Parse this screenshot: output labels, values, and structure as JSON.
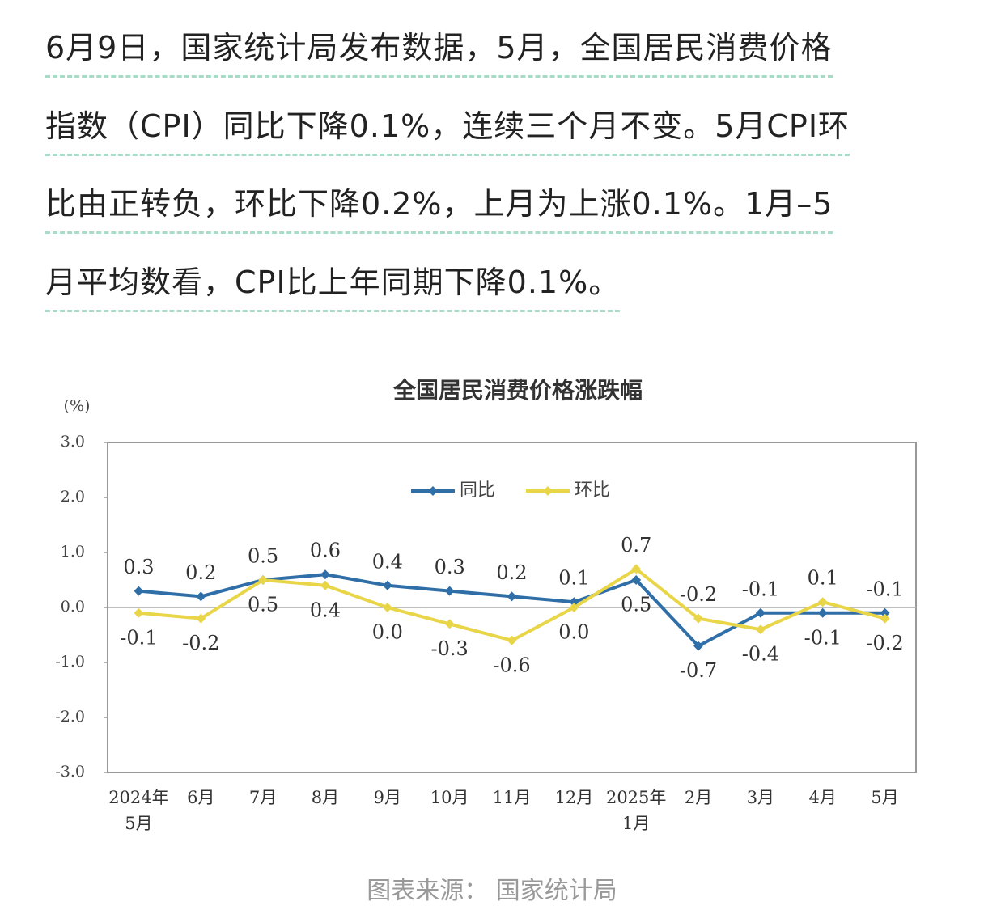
{
  "paragraph": [
    "6月9日，国家统计局发布数据，5月，全国居民消费价格",
    "指数（CPI）同比下降0.1%，连续三个月不变。5月CPI环",
    "比由正转负，环比下降0.2%，上月为上涨0.1%。1月–5",
    "月平均数看，CPI比上年同期下降0.1%。"
  ],
  "chart_data": {
    "type": "line",
    "title": "全国居民消费价格涨跌幅",
    "y_unit": "(%)",
    "categories": [
      "2024年\n5月",
      "6月",
      "7月",
      "8月",
      "9月",
      "10月",
      "11月",
      "12月",
      "2025年\n1月",
      "2月",
      "3月",
      "4月",
      "5月"
    ],
    "series": [
      {
        "name": "同比",
        "color": "#2f6ea6",
        "values": [
          0.3,
          0.2,
          0.5,
          0.6,
          0.4,
          0.3,
          0.2,
          0.1,
          0.5,
          -0.7,
          -0.1,
          -0.1,
          -0.1
        ],
        "value_labels": [
          "0.3",
          "0.2",
          "0.5",
          "0.6",
          "0.4",
          "0.3",
          "0.2",
          "0.1",
          "0.5",
          "-0.7",
          "-0.1",
          "-0.1",
          "-0.1"
        ]
      },
      {
        "name": "环比",
        "color": "#e9d548",
        "values": [
          -0.1,
          -0.2,
          0.5,
          0.4,
          0.0,
          -0.3,
          -0.6,
          0.0,
          0.7,
          -0.2,
          -0.4,
          0.1,
          -0.2
        ],
        "value_labels": [
          "-0.1",
          "-0.2",
          "0.5",
          "0.4",
          "0.0",
          "-0.3",
          "-0.6",
          "0.0",
          "0.7",
          "-0.2",
          "-0.4",
          "0.1",
          "-0.2"
        ]
      }
    ],
    "ylim": [
      -3,
      3
    ],
    "yticks": [
      {
        "value": -3,
        "label": "-3.0"
      },
      {
        "value": -2,
        "label": "-2.0"
      },
      {
        "value": -1,
        "label": "-1.0"
      },
      {
        "value": 0,
        "label": "0.0"
      },
      {
        "value": 1,
        "label": "1.0"
      },
      {
        "value": 2,
        "label": "2.0"
      },
      {
        "value": 3,
        "label": "3.0"
      }
    ],
    "zero_line": true,
    "legend": "top"
  },
  "source": "图表来源： 国家统计局"
}
